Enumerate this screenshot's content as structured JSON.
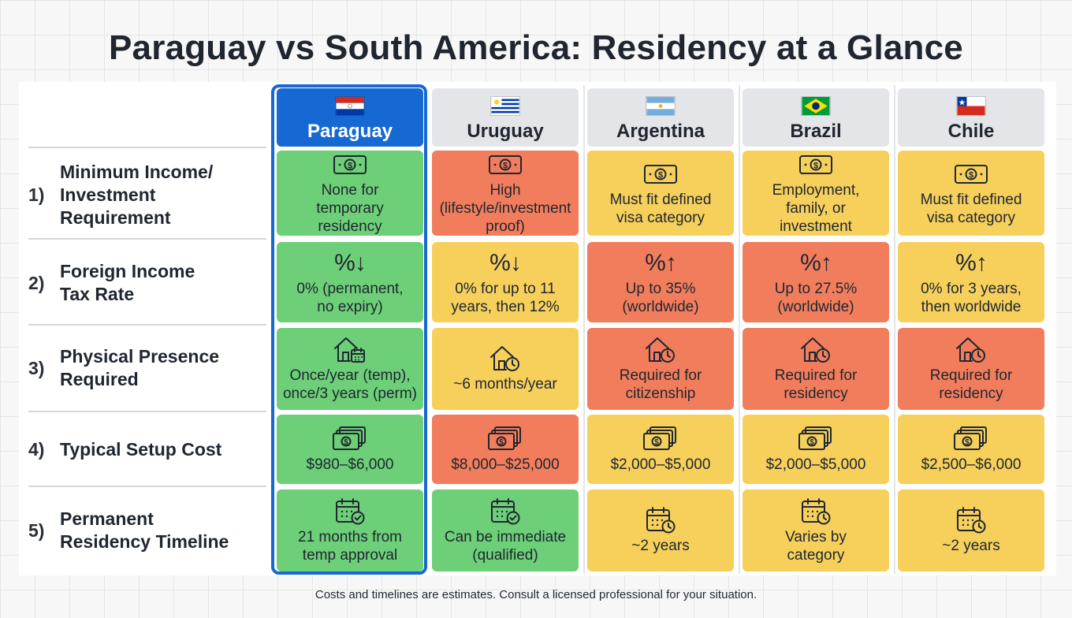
{
  "title": "Paraguay vs South America: Residency at a Glance",
  "colors": {
    "featured": "#1668d2",
    "good": "#6dcf78",
    "medium": "#f6d05b",
    "bad": "#f27d5c",
    "header": "#e3e5e8"
  },
  "countries": [
    {
      "name": "Paraguay",
      "flag": "paraguay-flag",
      "featured": true
    },
    {
      "name": "Uruguay",
      "flag": "uruguay-flag",
      "featured": false
    },
    {
      "name": "Argentina",
      "flag": "argentina-flag",
      "featured": false
    },
    {
      "name": "Brazil",
      "flag": "brazil-flag",
      "featured": false
    },
    {
      "name": "Chile",
      "flag": "chile-flag",
      "featured": false
    }
  ],
  "rows": [
    {
      "num": "1)",
      "label": "Minimum Income/\nInvestment\nRequirement",
      "icon": "money-icon",
      "cells": [
        {
          "text": "None for\ntemporary\nresidency",
          "status": "good"
        },
        {
          "text": "High\n(lifestyle/investment\nproof)",
          "status": "bad"
        },
        {
          "text": "Must fit defined\nvisa category",
          "status": "medium"
        },
        {
          "text": "Employment,\nfamily, or\ninvestment",
          "status": "medium"
        },
        {
          "text": "Must fit defined\nvisa category",
          "status": "medium"
        }
      ]
    },
    {
      "num": "2)",
      "label": "Foreign Income\nTax Rate",
      "icon": "percent-icon",
      "cells": [
        {
          "text": "0% (permanent,\nno expiry)",
          "status": "good",
          "symbol": "%↓"
        },
        {
          "text": "0% for up to 11\nyears, then 12%",
          "status": "medium",
          "symbol": "%↓"
        },
        {
          "text": "Up to 35%\n(worldwide)",
          "status": "bad",
          "symbol": "%↑"
        },
        {
          "text": "Up to 27.5%\n(worldwide)",
          "status": "bad",
          "symbol": "%↑"
        },
        {
          "text": "0% for 3 years,\nthen worldwide",
          "status": "medium",
          "symbol": "%↑"
        }
      ]
    },
    {
      "num": "3)",
      "label": "Physical Presence\nRequired",
      "icon": "house-clock-icon",
      "cells": [
        {
          "text": "Once/year (temp),\nonce/3 years (perm)",
          "status": "good"
        },
        {
          "text": "~6 months/year",
          "status": "medium"
        },
        {
          "text": "Required for\ncitizenship",
          "status": "bad"
        },
        {
          "text": "Required for\nresidency",
          "status": "bad"
        },
        {
          "text": "Required for\nresidency",
          "status": "bad"
        }
      ]
    },
    {
      "num": "4)",
      "label": "Typical Setup Cost",
      "icon": "cash-stack-icon",
      "cells": [
        {
          "text": "$980–$6,000",
          "status": "good"
        },
        {
          "text": "$8,000–$25,000",
          "status": "bad"
        },
        {
          "text": "$2,000–$5,000",
          "status": "medium"
        },
        {
          "text": "$2,000–$5,000",
          "status": "medium"
        },
        {
          "text": "$2,500–$6,000",
          "status": "medium"
        }
      ]
    },
    {
      "num": "5)",
      "label": "Permanent\nResidency Timeline",
      "icon": "calendar-icon",
      "cells": [
        {
          "text": "21 months from\ntemp approval",
          "status": "good",
          "variant": "check"
        },
        {
          "text": "Can be immediate\n(qualified)",
          "status": "good",
          "variant": "check"
        },
        {
          "text": "~2 years",
          "status": "medium",
          "variant": "clock"
        },
        {
          "text": "Varies by\ncategory",
          "status": "medium",
          "variant": "clock"
        },
        {
          "text": "~2 years",
          "status": "medium",
          "variant": "clock"
        }
      ]
    }
  ],
  "footnote": "Costs and timelines are estimates. Consult a licensed professional for your situation."
}
